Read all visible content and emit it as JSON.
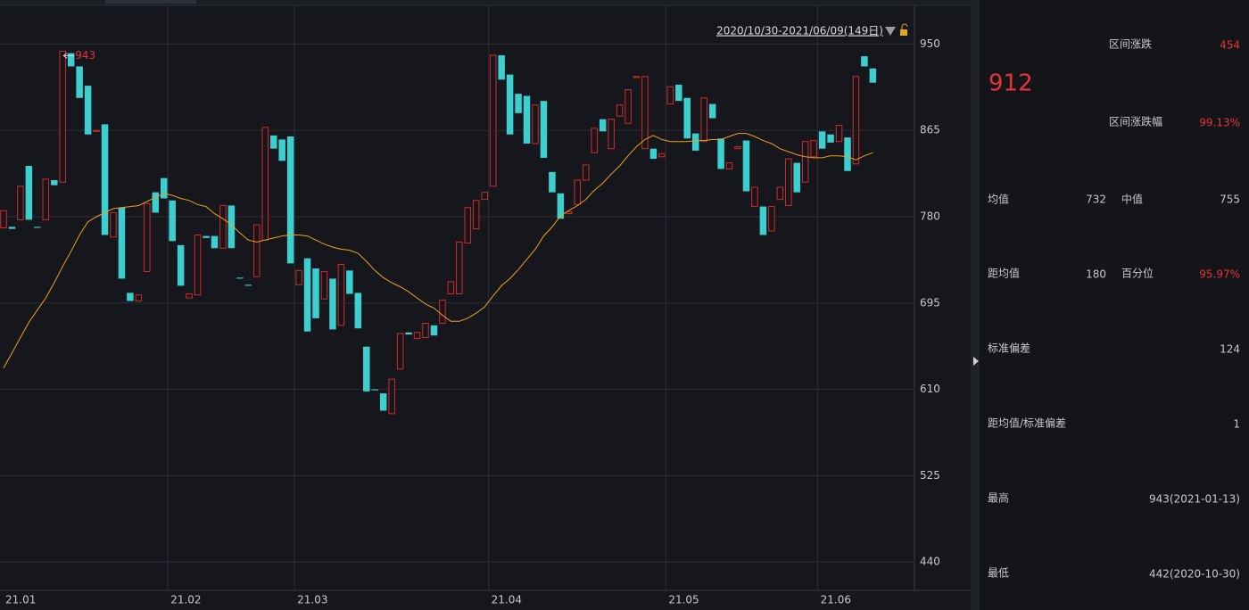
{
  "chart_data": {
    "type": "candlestick",
    "range_label": "2020/10/30-2021/06/09(149日)",
    "annotation": "943",
    "ylim": [
      412,
      989
    ],
    "yticks": [
      440,
      525,
      610,
      695,
      780,
      865,
      950
    ],
    "grid": true,
    "up_color": "#d42a2a",
    "down_color": "#3dcfd0",
    "ma_color": "#f0a020",
    "categories": [
      "21.01",
      null,
      null,
      null,
      null,
      null,
      null,
      null,
      null,
      null,
      null,
      null,
      null,
      null,
      null,
      null,
      null,
      null,
      null,
      null,
      "21.02",
      null,
      null,
      null,
      null,
      null,
      null,
      null,
      null,
      null,
      null,
      null,
      null,
      null,
      null,
      "21.03",
      null,
      null,
      null,
      null,
      null,
      null,
      null,
      null,
      null,
      null,
      null,
      null,
      null,
      null,
      null,
      null,
      null,
      null,
      null,
      null,
      null,
      null,
      "21.04",
      null,
      null,
      null,
      null,
      null,
      null,
      null,
      null,
      null,
      null,
      null,
      null,
      null,
      null,
      null,
      null,
      null,
      null,
      null,
      null,
      "21.05",
      null,
      null,
      null,
      null,
      null,
      null,
      null,
      null,
      null,
      null,
      null,
      null,
      null,
      null,
      null,
      null,
      null,
      "21.06",
      null,
      null,
      null,
      null,
      null,
      null
    ],
    "open": [
      769,
      770,
      777,
      830,
      770,
      777,
      816,
      814,
      941,
      928,
      909,
      864,
      871,
      760,
      789,
      705,
      697,
      726,
      804,
      818,
      796,
      752,
      700,
      703,
      761,
      761,
      749,
      791,
      720,
      713,
      721,
      757,
      860,
      856,
      859,
      713,
      739,
      729,
      699,
      719,
      673,
      727,
      705,
      652,
      610,
      606,
      586,
      630,
      666,
      660,
      661,
      673,
      675,
      704,
      704,
      754,
      768,
      797,
      810,
      939,
      920,
      901,
      899,
      852,
      894,
      824,
      803,
      783,
      792,
      816,
      843,
      876,
      847,
      879,
      872,
      917,
      847,
      847,
      839,
      891,
      910,
      897,
      862,
      854,
      891,
      857,
      827,
      847,
      855,
      790,
      790,
      766,
      797,
      791,
      833,
      814,
      839,
      864,
      861,
      854,
      858,
      832,
      938,
      926
    ],
    "close": [
      786,
      768,
      810,
      777,
      769,
      817,
      811,
      943,
      928,
      897,
      861,
      865,
      762,
      784,
      719,
      697,
      703,
      793,
      784,
      798,
      756,
      712,
      704,
      762,
      759,
      749,
      791,
      749,
      719,
      712,
      772,
      868,
      847,
      835,
      734,
      727,
      667,
      680,
      726,
      669,
      733,
      704,
      670,
      608,
      609,
      589,
      620,
      665,
      664,
      666,
      675,
      663,
      698,
      716,
      755,
      789,
      796,
      804,
      939,
      915,
      861,
      882,
      852,
      890,
      838,
      804,
      778,
      785,
      816,
      831,
      867,
      864,
      876,
      890,
      905,
      918,
      918,
      837,
      842,
      908,
      894,
      857,
      845,
      897,
      877,
      827,
      833,
      849,
      805,
      809,
      762,
      790,
      809,
      837,
      804,
      854,
      855,
      847,
      853,
      870,
      825,
      918,
      928,
      912
    ],
    "ma_values": [
      631,
      646,
      661,
      676,
      688,
      700,
      715,
      731,
      746,
      762,
      775,
      780,
      784,
      788,
      789,
      790,
      791,
      795,
      799,
      803,
      801,
      798,
      796,
      792,
      790,
      783,
      778,
      772,
      764,
      757,
      755,
      757,
      759,
      761,
      762,
      762,
      761,
      757,
      753,
      750,
      748,
      747,
      744,
      736,
      727,
      720,
      715,
      711,
      706,
      700,
      694,
      690,
      683,
      677,
      677,
      680,
      685,
      691,
      702,
      712,
      719,
      728,
      738,
      748,
      761,
      770,
      781,
      786,
      791,
      797,
      806,
      813,
      822,
      830,
      840,
      849,
      856,
      860,
      856,
      854,
      854,
      854,
      855,
      855,
      856,
      856,
      859,
      862,
      862,
      859,
      855,
      852,
      847,
      844,
      841,
      839,
      838,
      838,
      840,
      840,
      839,
      836,
      840,
      843
    ]
  },
  "panel": {
    "change_label": "区间涨跌",
    "change": 454,
    "last": 912,
    "change_pct_label": "区间涨跌幅",
    "change_pct": "99.13%",
    "mean_label": "均值",
    "mean": 732,
    "median_label": "中值",
    "median": 755,
    "dist_label": "距均值",
    "dist": 180,
    "percentile_label": "百分位",
    "percentile": "95.97%",
    "std_label": "标准偏差",
    "std": 124,
    "z_label": "距均值/标准偏差",
    "z": 1,
    "high_label": "最高",
    "high": "943(2021-01-13)",
    "low_label": "最低",
    "low": "442(2020-10-30)"
  }
}
